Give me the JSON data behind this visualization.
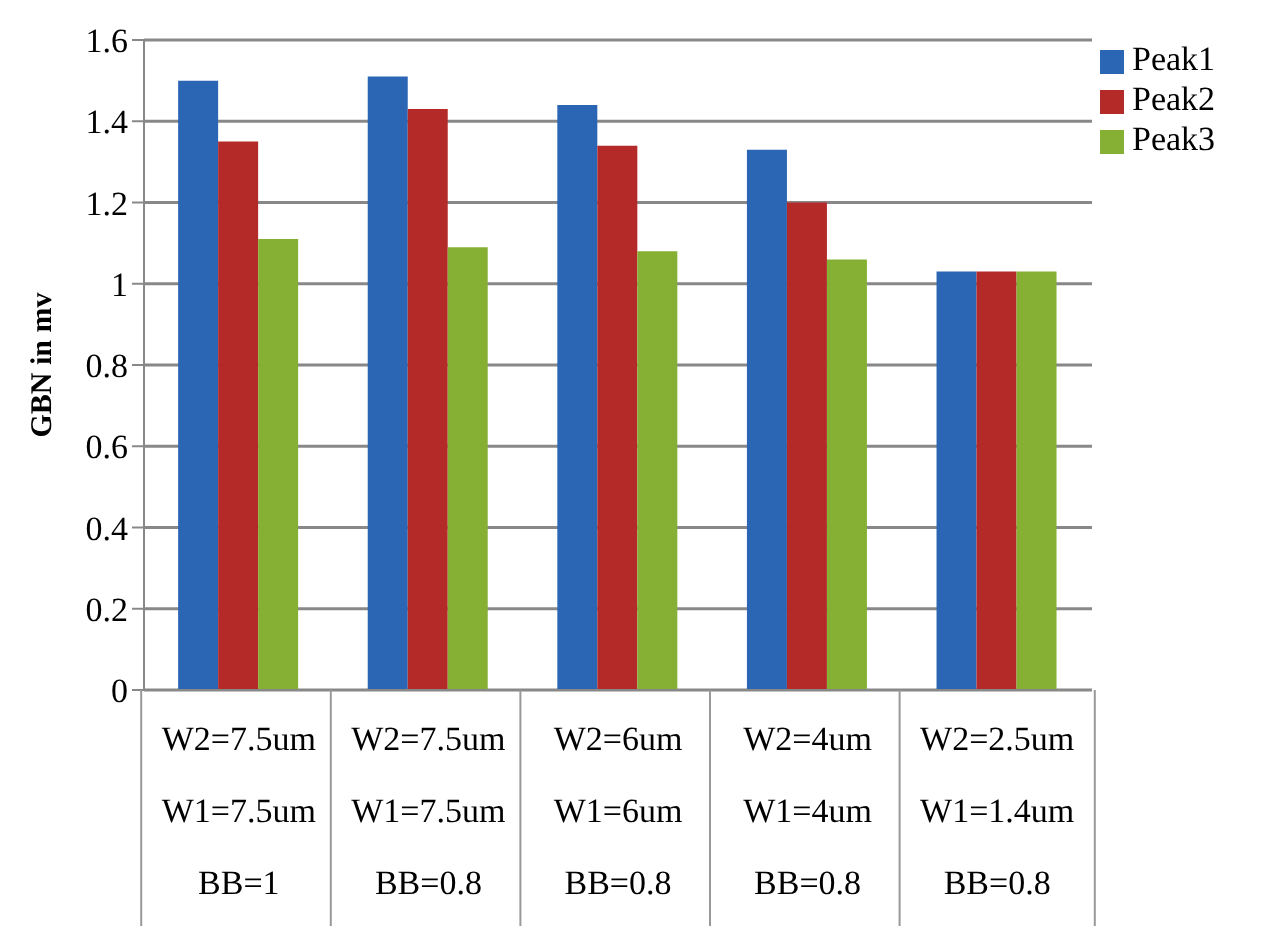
{
  "chart_data": {
    "type": "bar",
    "ylabel": "GBN in mv",
    "categories": [
      "W2=7.5um\nW1=7.5um\nBB=1",
      "W2=7.5um\nW1=7.5um\nBB=0.8",
      "W2=6um\nW1=6um\nBB=0.8",
      "W2=4um\nW1=4um\nBB=0.8",
      "W2=2.5um\nW1=1.4um\nBB=0.8"
    ],
    "series": [
      {
        "name": "Peak1",
        "color": "#2a66b4",
        "values": [
          1.5,
          1.51,
          1.44,
          1.33,
          1.03
        ]
      },
      {
        "name": "Peak2",
        "color": "#b42a28",
        "values": [
          1.35,
          1.43,
          1.34,
          1.2,
          1.03
        ]
      },
      {
        "name": "Peak3",
        "color": "#86b034",
        "values": [
          1.11,
          1.09,
          1.08,
          1.06,
          1.03
        ]
      }
    ],
    "ylim": [
      0,
      1.6
    ],
    "yticks": [
      0,
      0.2,
      0.4,
      0.6,
      0.8,
      1,
      1.2,
      1.4,
      1.6
    ],
    "grid": "y",
    "legend": "top right"
  }
}
